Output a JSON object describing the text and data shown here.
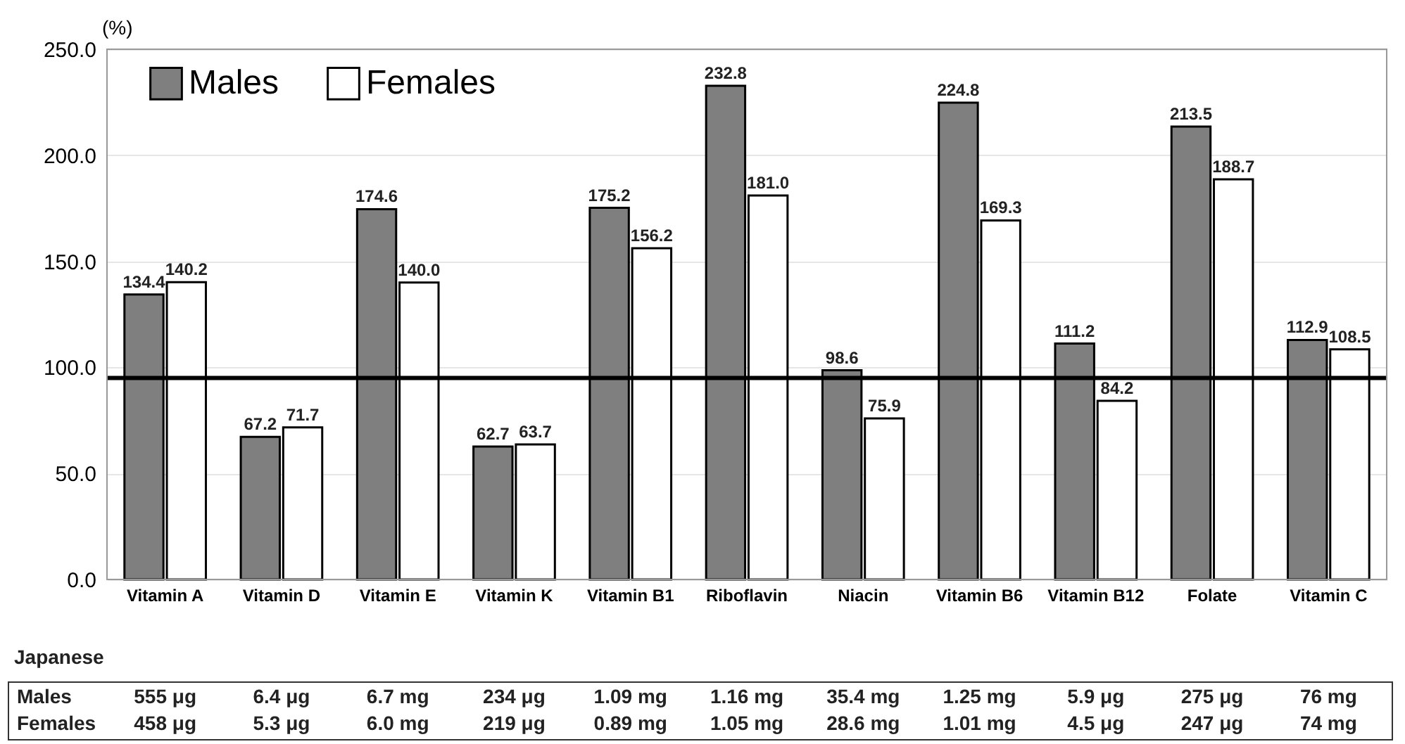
{
  "chart_data": {
    "type": "bar",
    "ylabel": "(%)",
    "categories": [
      "Vitamin A",
      "Vitamin D",
      "Vitamin E",
      "Vitamin K",
      "Vitamin B1",
      "Riboflavin",
      "Niacin",
      "Vitamin B6",
      "Vitamin B12",
      "Folate",
      "Vitamin C"
    ],
    "series": [
      {
        "name": "Males",
        "color": "#7f7f7f",
        "values": [
          134.4,
          67.2,
          174.6,
          62.7,
          175.2,
          232.8,
          98.6,
          224.8,
          111.2,
          213.5,
          112.9
        ],
        "value_labels": [
          "134.4",
          "67.2",
          "174.6",
          "62.7",
          "175.2",
          "232.8",
          "98.6",
          "224.8",
          "111.2",
          "213.5",
          "112.9"
        ]
      },
      {
        "name": "Females",
        "color": "#ffffff",
        "values": [
          140.2,
          71.7,
          140.0,
          63.7,
          156.2,
          181.0,
          75.9,
          169.3,
          84.2,
          188.7,
          108.5
        ],
        "value_labels": [
          "140.2",
          "71.7",
          "140.0",
          "63.7",
          "156.2",
          "181.0",
          "75.9",
          "169.3",
          "84.2",
          "188.7",
          "108.5"
        ]
      }
    ],
    "ylim": [
      0,
      250
    ],
    "yticks": [
      {
        "value": 0,
        "label": "0.0"
      },
      {
        "value": 50,
        "label": "50.0"
      },
      {
        "value": 100,
        "label": "100.0"
      },
      {
        "value": 150,
        "label": "150.0"
      },
      {
        "value": 200,
        "label": "200.0"
      },
      {
        "value": 250,
        "label": "250.0"
      }
    ],
    "ref_lines": [
      {
        "axis": "y",
        "value": 95,
        "color": "#000000"
      }
    ],
    "grid": "y",
    "legend": "top left",
    "annotations": [
      "Japanese",
      "Males",
      "555 μg",
      "6.4 μg",
      "6.7 mg",
      "234 μg",
      "1.09 mg",
      "1.16 mg",
      "35.4 mg",
      "1.25 mg",
      "5.9 μg",
      "275 μg",
      "76 mg",
      "Females",
      "458 μg",
      "5.3 μg",
      "6.0 mg",
      "219 μg",
      "0.89 mg",
      "1.05 mg",
      "28.6 mg",
      "1.01 mg",
      "4.5 μg",
      "247 μg",
      "74 mg"
    ]
  }
}
